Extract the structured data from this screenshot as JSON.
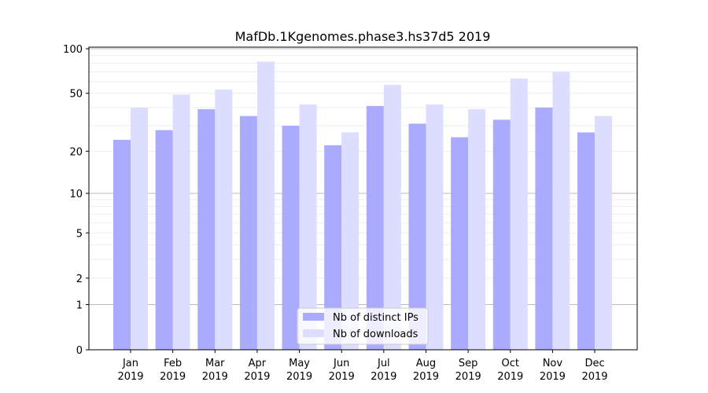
{
  "chart_data": {
    "type": "bar",
    "title": "MafDb.1Kgenomes.phase3.hs37d5 2019",
    "xlabel": "",
    "ylabel": "",
    "yscale": "symlog (log10(1+y))",
    "ylim": [
      0,
      100
    ],
    "yticks": [
      0,
      1,
      2,
      5,
      10,
      20,
      50,
      100
    ],
    "grid": true,
    "legend_position": "bottom-center",
    "categories": [
      "Jan\n2019",
      "Feb\n2019",
      "Mar\n2019",
      "Apr\n2019",
      "May\n2019",
      "Jun\n2019",
      "Jul\n2019",
      "Aug\n2019",
      "Sep\n2019",
      "Oct\n2019",
      "Nov\n2019",
      "Dec\n2019"
    ],
    "series": [
      {
        "name": "Nb of distinct IPs",
        "color": "#aaaaff",
        "values": [
          24,
          28,
          39,
          35,
          30,
          22,
          41,
          31,
          25,
          33,
          40,
          27
        ]
      },
      {
        "name": "Nb of downloads",
        "color": "#ddddff",
        "values": [
          40,
          49,
          53,
          82,
          42,
          27,
          57,
          42,
          39,
          63,
          70,
          35
        ]
      }
    ]
  }
}
